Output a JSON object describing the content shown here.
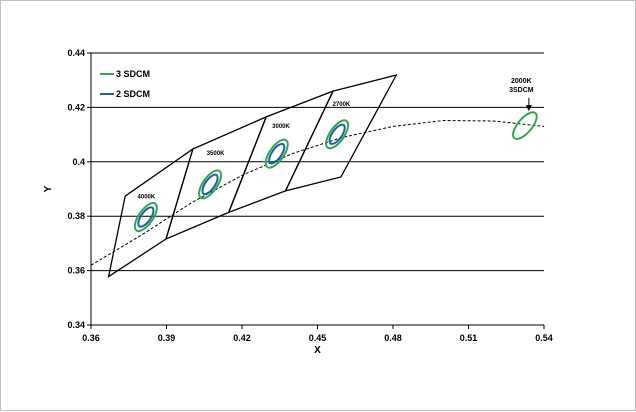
{
  "chart_data": {
    "type": "scatter",
    "xlabel": "X",
    "ylabel": "Y",
    "xlim": [
      0.36,
      0.54
    ],
    "ylim": [
      0.34,
      0.44
    ],
    "xticks": [
      "0.36",
      "0.39",
      "0.42",
      "0.45",
      "0.48",
      "0.51",
      "0.54"
    ],
    "yticks": [
      "0.34",
      "0.36",
      "0.38",
      "0.4",
      "0.42",
      "0.44"
    ],
    "grid": "horizontal",
    "legend": {
      "placement": "top-left",
      "entries": [
        {
          "label": "3 SDCM",
          "color": "#2eaa4a"
        },
        {
          "label": "2 SDCM",
          "color": "#1f5fa8"
        }
      ]
    },
    "planckian_locus": [
      [
        0.36,
        0.362
      ],
      [
        0.38,
        0.373
      ],
      [
        0.4,
        0.385
      ],
      [
        0.42,
        0.395
      ],
      [
        0.44,
        0.403
      ],
      [
        0.46,
        0.409
      ],
      [
        0.48,
        0.413
      ],
      [
        0.5,
        0.4152
      ],
      [
        0.52,
        0.415
      ],
      [
        0.54,
        0.413
      ]
    ],
    "quadrangles": [
      {
        "label": "4000K",
        "label_pos": [
          0.382,
          0.3865
        ],
        "corners": [
          [
            0.3736,
            0.3874
          ],
          [
            0.4005,
            0.4047
          ],
          [
            0.3898,
            0.3716
          ],
          [
            0.367,
            0.3578
          ]
        ]
      },
      {
        "label": "3500K",
        "label_pos": [
          0.4095,
          0.4025
        ],
        "corners": [
          [
            0.4005,
            0.4047
          ],
          [
            0.4296,
            0.4165
          ],
          [
            0.4147,
            0.3814
          ],
          [
            0.3898,
            0.3716
          ]
        ]
      },
      {
        "label": "3000K",
        "label_pos": [
          0.4355,
          0.4125
        ],
        "corners": [
          [
            0.4296,
            0.4165
          ],
          [
            0.4562,
            0.426
          ],
          [
            0.4373,
            0.3893
          ],
          [
            0.4147,
            0.3814
          ]
        ]
      },
      {
        "label": "2700K",
        "label_pos": [
          0.4595,
          0.4205
        ],
        "corners": [
          [
            0.4562,
            0.426
          ],
          [
            0.4813,
            0.4319
          ],
          [
            0.4593,
            0.3944
          ],
          [
            0.4373,
            0.3893
          ]
        ]
      }
    ],
    "ellipses": [
      {
        "cct": "4000K",
        "center": [
          0.3818,
          0.3797
        ],
        "sdcm3": {
          "a": 0.0065,
          "b": 0.0028,
          "angle": 55
        },
        "sdcm2": {
          "a": 0.0045,
          "b": 0.0019,
          "angle": 55
        }
      },
      {
        "cct": "3500K",
        "center": [
          0.4073,
          0.3917
        ],
        "sdcm3": {
          "a": 0.0065,
          "b": 0.0028,
          "angle": 55
        },
        "sdcm2": {
          "a": 0.0045,
          "b": 0.0019,
          "angle": 55
        }
      },
      {
        "cct": "3000K",
        "center": [
          0.4338,
          0.403
        ],
        "sdcm3": {
          "a": 0.0065,
          "b": 0.0028,
          "angle": 55
        },
        "sdcm2": {
          "a": 0.0045,
          "b": 0.0019,
          "angle": 55
        }
      },
      {
        "cct": "2700K",
        "center": [
          0.4578,
          0.4101
        ],
        "sdcm3": {
          "a": 0.0065,
          "b": 0.0028,
          "angle": 55
        },
        "sdcm2": {
          "a": 0.0045,
          "b": 0.0019,
          "angle": 55
        }
      },
      {
        "cct": "2000K",
        "center": [
          0.5324,
          0.4133
        ],
        "sdcm3": {
          "a": 0.0065,
          "b": 0.0028,
          "angle": 50
        }
      }
    ],
    "annotation": {
      "lines": [
        "2000K",
        "3SDCM"
      ],
      "text_pos": [
        0.531,
        0.429
      ],
      "arrow_from": [
        0.534,
        0.4235
      ],
      "arrow_to": [
        0.534,
        0.419
      ]
    }
  }
}
